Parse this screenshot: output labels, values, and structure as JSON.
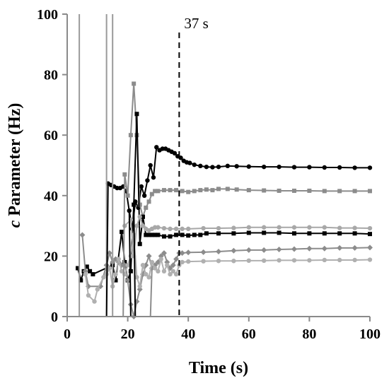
{
  "chart_data": {
    "type": "line",
    "title": "",
    "xlabel": "Time (s)",
    "ylabel_italic": "c",
    "ylabel_rest": " Parameter (Hz)",
    "xlim": [
      0,
      100
    ],
    "ylim": [
      0,
      100
    ],
    "x_ticks": [
      0,
      20,
      40,
      60,
      80,
      100
    ],
    "y_ticks": [
      0,
      20,
      40,
      60,
      80,
      100
    ],
    "grid": false,
    "legend": "none",
    "annotation": {
      "text": "37 s",
      "x": 37
    },
    "series": [
      {
        "color": "#000000",
        "marker": "circle",
        "points": [
          [
            13.5,
            44
          ],
          [
            14.5,
            43.5
          ],
          [
            15.5,
            43
          ],
          [
            16.5,
            42.5
          ],
          [
            17.5,
            42.5
          ],
          [
            18.5,
            43
          ],
          [
            19.5,
            41.5
          ],
          [
            20.5,
            35
          ],
          [
            21.5,
            29
          ],
          [
            22.5,
            38
          ],
          [
            23.5,
            36
          ],
          [
            24.5,
            43
          ],
          [
            25.5,
            40
          ],
          [
            26.5,
            45
          ],
          [
            27.5,
            50
          ],
          [
            28.5,
            46
          ],
          [
            29.5,
            56
          ],
          [
            30.5,
            55
          ],
          [
            31.5,
            55.5
          ],
          [
            32.5,
            55.5
          ],
          [
            33.5,
            55
          ],
          [
            34.5,
            54.5
          ],
          [
            35.5,
            54
          ],
          [
            36.5,
            53
          ],
          [
            37.5,
            52.5
          ],
          [
            38.5,
            51.5
          ],
          [
            39.5,
            51
          ],
          [
            40.5,
            50.8
          ],
          [
            42,
            50.2
          ],
          [
            44,
            49.8
          ],
          [
            46,
            49.5
          ],
          [
            48,
            49.4
          ],
          [
            50,
            49.5
          ],
          [
            53,
            49.8
          ],
          [
            56,
            49.7
          ],
          [
            60,
            49.6
          ],
          [
            65,
            49.5
          ],
          [
            70,
            49.5
          ],
          [
            75,
            49.4
          ],
          [
            80,
            49.4
          ],
          [
            85,
            49.3
          ],
          [
            90,
            49.3
          ],
          [
            95,
            49.2
          ],
          [
            100,
            49.2
          ]
        ]
      },
      {
        "color": "#8c8c8c",
        "marker": "square",
        "points": [
          [
            19,
            47
          ],
          [
            20,
            40
          ],
          [
            21,
            60
          ],
          [
            22,
            77
          ],
          [
            23,
            60
          ],
          [
            24,
            37
          ],
          [
            25,
            33
          ],
          [
            26,
            36
          ],
          [
            27,
            38
          ],
          [
            28,
            40.5
          ],
          [
            29,
            41.5
          ],
          [
            30,
            41.5
          ],
          [
            32,
            41.8
          ],
          [
            34,
            41.8
          ],
          [
            36,
            41.8
          ],
          [
            38,
            41.5
          ],
          [
            40,
            41.2
          ],
          [
            42,
            41.5
          ],
          [
            44,
            41.8
          ],
          [
            46,
            42
          ],
          [
            48,
            41.8
          ],
          [
            50,
            42.2
          ],
          [
            53,
            42.2
          ],
          [
            56,
            42
          ],
          [
            60,
            41.8
          ],
          [
            65,
            41.7
          ],
          [
            70,
            41.6
          ],
          [
            75,
            41.6
          ],
          [
            80,
            41.6
          ],
          [
            85,
            41.5
          ],
          [
            90,
            41.5
          ],
          [
            95,
            41.5
          ],
          [
            100,
            41.5
          ]
        ]
      },
      {
        "color": "#000000",
        "marker": "square",
        "points": [
          [
            3.5,
            16
          ],
          [
            4.5,
            12
          ],
          [
            5.5,
            15
          ],
          [
            6.5,
            16.5
          ],
          [
            7.5,
            15
          ],
          [
            8.5,
            14
          ],
          [
            15,
            17
          ],
          [
            16,
            12
          ],
          [
            18,
            28
          ],
          [
            19,
            18
          ],
          [
            20,
            12
          ],
          [
            21,
            15
          ],
          [
            22,
            37
          ],
          [
            23,
            67
          ],
          [
            24,
            24
          ],
          [
            25,
            33
          ],
          [
            26,
            27
          ],
          [
            27,
            27
          ],
          [
            28,
            27
          ],
          [
            29,
            27
          ],
          [
            30,
            27
          ],
          [
            32,
            26.5
          ],
          [
            34,
            26.5
          ],
          [
            36,
            27
          ],
          [
            38,
            27
          ],
          [
            40,
            26.8
          ],
          [
            42,
            27
          ],
          [
            44,
            27
          ],
          [
            46,
            27.5
          ],
          [
            50,
            27.5
          ],
          [
            55,
            27.5
          ],
          [
            60,
            27.7
          ],
          [
            65,
            27.7
          ],
          [
            70,
            27.7
          ],
          [
            75,
            27.5
          ],
          [
            80,
            27.5
          ],
          [
            85,
            27.5
          ],
          [
            90,
            27.5
          ],
          [
            95,
            27.5
          ],
          [
            100,
            27.3
          ]
        ]
      },
      {
        "color": "#a8a8a8",
        "marker": "circle",
        "points": [
          [
            19,
            30
          ],
          [
            21,
            32
          ],
          [
            22,
            20
          ],
          [
            23,
            30
          ],
          [
            24,
            33
          ],
          [
            25,
            30
          ],
          [
            26,
            29
          ],
          [
            27,
            28.5
          ],
          [
            28,
            29
          ],
          [
            29,
            29.5
          ],
          [
            30,
            29.5
          ],
          [
            32,
            29.2
          ],
          [
            34,
            29
          ],
          [
            36,
            29
          ],
          [
            38,
            29
          ],
          [
            40,
            29
          ],
          [
            45,
            29.2
          ],
          [
            50,
            29.2
          ],
          [
            55,
            29.3
          ],
          [
            60,
            29.5
          ],
          [
            65,
            29.5
          ],
          [
            70,
            29.5
          ],
          [
            75,
            29.5
          ],
          [
            80,
            29.5
          ],
          [
            85,
            29.5
          ],
          [
            90,
            29.3
          ],
          [
            95,
            29.3
          ],
          [
            100,
            29.2
          ]
        ]
      },
      {
        "color": "#8c8c8c",
        "marker": "diamond",
        "points": [
          [
            5,
            27
          ],
          [
            6,
            15
          ],
          [
            7,
            10
          ],
          [
            11,
            10
          ],
          [
            13,
            17
          ],
          [
            14,
            21
          ],
          [
            15,
            18
          ],
          [
            16,
            19
          ],
          [
            17,
            18
          ],
          [
            18,
            17
          ],
          [
            19,
            17
          ],
          [
            20,
            12
          ],
          [
            21,
            4
          ],
          [
            22,
            0
          ],
          [
            23,
            5
          ],
          [
            24,
            9
          ],
          [
            25,
            14
          ],
          [
            26,
            17
          ],
          [
            27,
            20
          ],
          [
            28,
            16
          ],
          [
            29,
            17
          ],
          [
            30,
            18
          ],
          [
            31,
            20
          ],
          [
            32,
            21
          ],
          [
            33,
            18
          ],
          [
            34,
            16
          ],
          [
            35,
            17
          ],
          [
            36,
            19
          ],
          [
            37,
            21
          ],
          [
            38,
            21
          ],
          [
            40,
            21.2
          ],
          [
            45,
            21.3
          ],
          [
            50,
            21.5
          ],
          [
            55,
            21.8
          ],
          [
            60,
            22
          ],
          [
            65,
            22
          ],
          [
            70,
            22.2
          ],
          [
            75,
            22.3
          ],
          [
            80,
            22.5
          ],
          [
            85,
            22.5
          ],
          [
            90,
            22.7
          ],
          [
            95,
            22.7
          ],
          [
            100,
            22.8
          ]
        ]
      },
      {
        "color": "#b0b0b0",
        "marker": "circle",
        "points": [
          [
            6,
            14
          ],
          [
            7,
            7
          ],
          [
            9,
            5
          ],
          [
            10,
            9
          ],
          [
            12,
            13
          ],
          [
            13,
            14
          ],
          [
            14,
            16
          ],
          [
            15,
            10
          ],
          [
            16,
            14
          ],
          [
            17,
            19
          ],
          [
            18,
            15
          ],
          [
            19,
            14
          ],
          [
            20,
            17
          ],
          [
            21,
            20
          ],
          [
            22,
            27
          ],
          [
            23,
            13
          ],
          [
            24,
            10
          ],
          [
            25,
            17
          ],
          [
            26,
            14
          ],
          [
            27,
            13
          ],
          [
            28,
            18
          ],
          [
            29,
            16
          ],
          [
            30,
            15
          ],
          [
            31,
            19
          ],
          [
            32,
            15
          ],
          [
            33,
            17
          ],
          [
            34,
            14
          ],
          [
            35,
            15
          ],
          [
            36,
            14
          ],
          [
            37,
            17
          ],
          [
            38,
            18
          ],
          [
            40,
            18.2
          ],
          [
            45,
            18.3
          ],
          [
            50,
            18.4
          ],
          [
            55,
            18.4
          ],
          [
            60,
            18.5
          ],
          [
            65,
            18.5
          ],
          [
            70,
            18.6
          ],
          [
            75,
            18.6
          ],
          [
            80,
            18.6
          ],
          [
            85,
            18.7
          ],
          [
            90,
            18.7
          ],
          [
            95,
            18.7
          ],
          [
            100,
            18.8
          ]
        ]
      }
    ],
    "spikes": [
      {
        "color": "#9a9a9a",
        "points": [
          [
            4,
            0
          ],
          [
            4,
            100
          ]
        ]
      },
      {
        "color": "#9a9a9a",
        "points": [
          [
            13,
            0
          ],
          [
            13,
            100
          ]
        ]
      },
      {
        "color": "#9a9a9a",
        "points": [
          [
            15,
            0
          ],
          [
            15,
            100
          ]
        ]
      },
      {
        "color": "#000000",
        "points": [
          [
            13,
            0
          ],
          [
            13.5,
            44
          ]
        ]
      },
      {
        "color": "#000000",
        "points": [
          [
            20.5,
            35
          ],
          [
            21,
            0
          ]
        ]
      },
      {
        "color": "#000000",
        "points": [
          [
            22,
            37
          ],
          [
            22.5,
            0
          ]
        ]
      },
      {
        "color": "#8c8c8c",
        "points": [
          [
            18.5,
            0
          ],
          [
            19,
            47
          ]
        ]
      },
      {
        "color": "#8c8c8c",
        "points": [
          [
            27.5,
            0
          ],
          [
            28,
            16
          ]
        ]
      }
    ]
  }
}
